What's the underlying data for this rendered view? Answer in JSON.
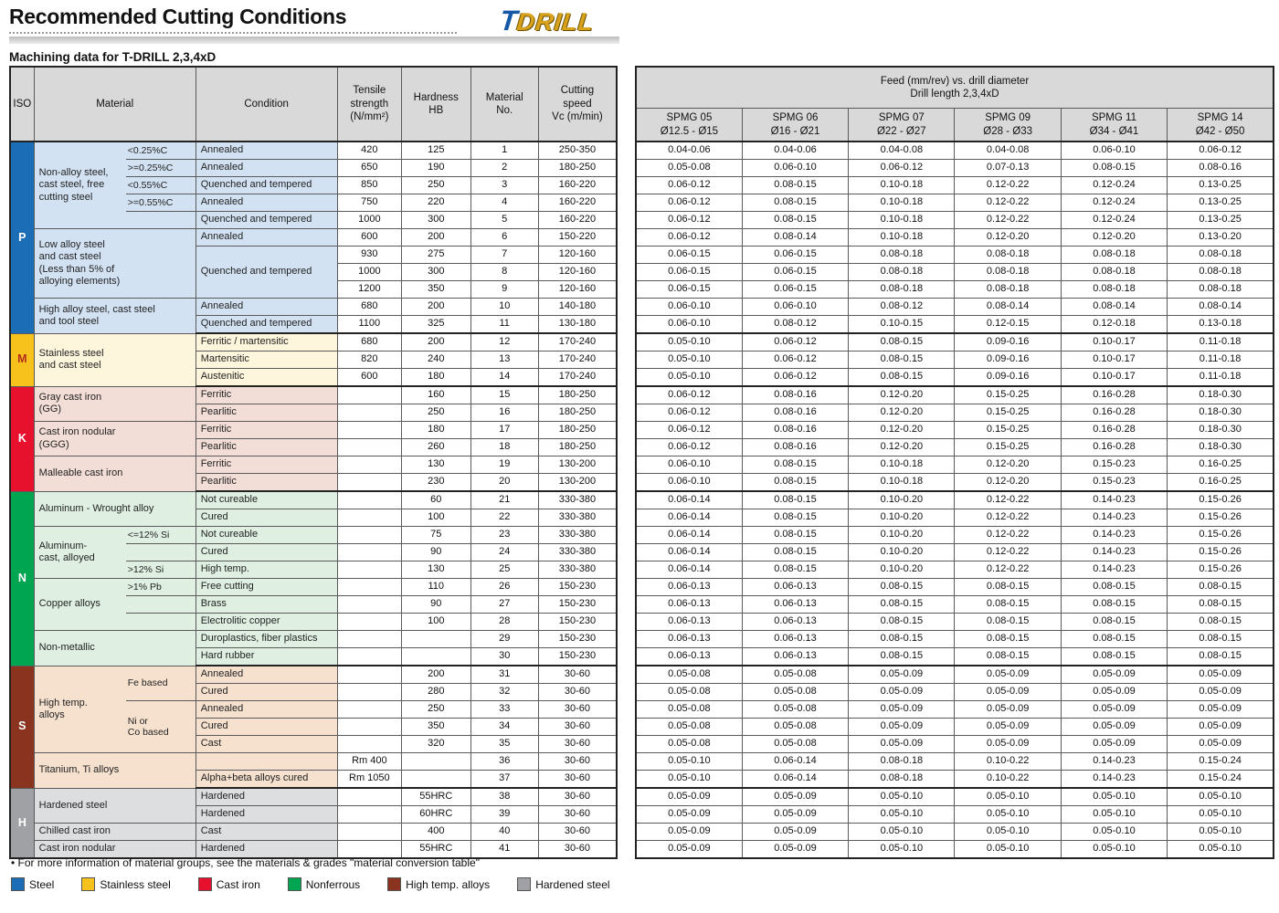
{
  "page": {
    "title": "Recommended Cutting Conditions",
    "subtitle": "Machining data for T-DRILL 2,3,4xD",
    "logo_t": "T",
    "logo_drill": "DRILL"
  },
  "left_table": {
    "header": {
      "iso": "ISO",
      "material": "Material",
      "condition": "Condition",
      "tensile": "Tensile\nstrength\n(N/mm²)",
      "hardness": "Hardness\nHB",
      "material_no": "Material\nNo.",
      "cutting_speed": "Cutting\nspeed\nVc (m/min)"
    },
    "iso_groups": [
      {
        "letter": "P",
        "start": 1,
        "end": 11,
        "color": "#1b6db6",
        "letter_color": "#ffffff",
        "bg": "#d3e2f3",
        "pattern": false
      },
      {
        "letter": "M",
        "start": 12,
        "end": 14,
        "color": "#f6c21b",
        "letter_color": "#b42b1e",
        "bg": "#fdf5dc",
        "pattern": false
      },
      {
        "letter": "K",
        "start": 15,
        "end": 20,
        "color": "#e8112d",
        "letter_color": "#ffffff",
        "bg": "#f3ded7",
        "pattern": false
      },
      {
        "letter": "N",
        "start": 21,
        "end": 30,
        "color": "#00a551",
        "letter_color": "#ffffff",
        "bg": "#dff0e2",
        "pattern": false
      },
      {
        "letter": "S",
        "start": 31,
        "end": 37,
        "color": "#8a341f",
        "letter_color": "#ffffff",
        "bg": "#f6e1cf",
        "pattern": false
      },
      {
        "letter": "H",
        "start": 38,
        "end": 41,
        "color": "#9fa1a4",
        "letter_color": "#ffffff",
        "bg": "#dcdee0",
        "pattern": true
      }
    ],
    "material_groups": [
      {
        "label": "Non-alloy steel,\ncast steel, free\ncutting steel",
        "start": 1,
        "end": 5,
        "sub": true
      },
      {
        "label": "Low alloy steel\nand cast steel\n(Less than 5% of\nalloying elements)",
        "start": 6,
        "end": 9,
        "sub": false
      },
      {
        "label": "High alloy steel, cast steel\nand tool steel",
        "start": 10,
        "end": 11,
        "sub": false
      },
      {
        "label": "Stainless steel\nand cast steel",
        "start": 12,
        "end": 14,
        "sub": false
      },
      {
        "label": "Gray cast iron\n(GG)",
        "start": 15,
        "end": 16,
        "sub": false
      },
      {
        "label": "Cast iron nodular\n(GGG)",
        "start": 17,
        "end": 18,
        "sub": false
      },
      {
        "label": "Malleable cast iron",
        "start": 19,
        "end": 20,
        "sub": false
      },
      {
        "label": "Aluminum - Wrought alloy",
        "start": 21,
        "end": 22,
        "sub": false
      },
      {
        "label": "Aluminum-\ncast, alloyed",
        "start": 23,
        "end": 25,
        "sub": true
      },
      {
        "label": "Copper alloys",
        "start": 26,
        "end": 28,
        "sub": true
      },
      {
        "label": "Non-metallic",
        "start": 29,
        "end": 30,
        "sub": false
      },
      {
        "label": "High temp.\nalloys",
        "start": 31,
        "end": 35,
        "sub": true
      },
      {
        "label": "Titanium, Ti alloys",
        "start": 36,
        "end": 37,
        "sub": false
      },
      {
        "label": "Hardened steel",
        "start": 38,
        "end": 39,
        "sub": false
      },
      {
        "label": "Chilled cast iron",
        "start": 40,
        "end": 40,
        "sub": false
      },
      {
        "label": "Cast iron nodular",
        "start": 41,
        "end": 41,
        "sub": false
      }
    ],
    "sub_labels": [
      {
        "row": 1,
        "span": 1,
        "text": "<0.25%C"
      },
      {
        "row": 2,
        "span": 1,
        "text": ">=0.25%C"
      },
      {
        "row": 3,
        "span": 1,
        "text": "<0.55%C"
      },
      {
        "row": 4,
        "span": 1,
        "text": ">=0.55%C"
      },
      {
        "row": 5,
        "span": 1,
        "text": ""
      },
      {
        "row": 23,
        "span": 1,
        "text": "<=12% Si"
      },
      {
        "row": 24,
        "span": 1,
        "text": ""
      },
      {
        "row": 25,
        "span": 1,
        "text": ">12% Si"
      },
      {
        "row": 26,
        "span": 1,
        "text": ">1% Pb"
      },
      {
        "row": 27,
        "span": 1,
        "text": ""
      },
      {
        "row": 28,
        "span": 1,
        "text": ""
      },
      {
        "row": 31,
        "span": 2,
        "text": "Fe based"
      },
      {
        "row": 33,
        "span": 3,
        "text": "Ni or\nCo based"
      }
    ],
    "conditions": [
      [
        "Annealed",
        1
      ],
      [
        "Annealed",
        1
      ],
      [
        "Quenched and tempered",
        1
      ],
      [
        "Annealed",
        1
      ],
      [
        "Quenched and tempered",
        1
      ],
      [
        "Annealed",
        1
      ],
      [
        "Quenched and tempered",
        3
      ],
      [
        "Annealed",
        1
      ],
      [
        "Quenched and tempered",
        1
      ],
      [
        "Ferritic / martensitic",
        1
      ],
      [
        "Martensitic",
        1
      ],
      [
        "Austenitic",
        1
      ],
      [
        "Ferritic",
        1
      ],
      [
        "Pearlitic",
        1
      ],
      [
        "Ferritic",
        1
      ],
      [
        "Pearlitic",
        1
      ],
      [
        "Ferritic",
        1
      ],
      [
        "Pearlitic",
        1
      ],
      [
        "Not cureable",
        1
      ],
      [
        "Cured",
        1
      ],
      [
        "Not cureable",
        1
      ],
      [
        "Cured",
        1
      ],
      [
        "High temp.",
        1
      ],
      [
        "Free cutting",
        1
      ],
      [
        "Brass",
        1
      ],
      [
        "Electrolitic copper",
        1
      ],
      [
        "Duroplastics, fiber plastics",
        1
      ],
      [
        "Hard rubber",
        1
      ],
      [
        "Annealed",
        1
      ],
      [
        "Cured",
        1
      ],
      [
        "Annealed",
        1
      ],
      [
        "Cured",
        1
      ],
      [
        "Cast",
        1
      ],
      [
        "",
        1
      ],
      [
        "Alpha+beta alloys cured",
        1
      ],
      [
        "Hardened",
        1
      ],
      [
        "Hardened",
        1
      ],
      [
        "Cast",
        1
      ],
      [
        "Hardened",
        1
      ]
    ],
    "rows": [
      [
        "420",
        "125",
        "1",
        "250-350"
      ],
      [
        "650",
        "190",
        "2",
        "180-250"
      ],
      [
        "850",
        "250",
        "3",
        "160-220"
      ],
      [
        "750",
        "220",
        "4",
        "160-220"
      ],
      [
        "1000",
        "300",
        "5",
        "160-220"
      ],
      [
        "600",
        "200",
        "6",
        "150-220"
      ],
      [
        "930",
        "275",
        "7",
        "120-160"
      ],
      [
        "1000",
        "300",
        "8",
        "120-160"
      ],
      [
        "1200",
        "350",
        "9",
        "120-160"
      ],
      [
        "680",
        "200",
        "10",
        "140-180"
      ],
      [
        "1100",
        "325",
        "11",
        "130-180"
      ],
      [
        "680",
        "200",
        "12",
        "170-240"
      ],
      [
        "820",
        "240",
        "13",
        "170-240"
      ],
      [
        "600",
        "180",
        "14",
        "170-240"
      ],
      [
        "",
        "160",
        "15",
        "180-250"
      ],
      [
        "",
        "250",
        "16",
        "180-250"
      ],
      [
        "",
        "180",
        "17",
        "180-250"
      ],
      [
        "",
        "260",
        "18",
        "180-250"
      ],
      [
        "",
        "130",
        "19",
        "130-200"
      ],
      [
        "",
        "230",
        "20",
        "130-200"
      ],
      [
        "",
        "60",
        "21",
        "330-380"
      ],
      [
        "",
        "100",
        "22",
        "330-380"
      ],
      [
        "",
        "75",
        "23",
        "330-380"
      ],
      [
        "",
        "90",
        "24",
        "330-380"
      ],
      [
        "",
        "130",
        "25",
        "330-380"
      ],
      [
        "",
        "110",
        "26",
        "150-230"
      ],
      [
        "",
        "90",
        "27",
        "150-230"
      ],
      [
        "",
        "100",
        "28",
        "150-230"
      ],
      [
        "",
        "",
        "29",
        "150-230"
      ],
      [
        "",
        "",
        "30",
        "150-230"
      ],
      [
        "",
        "200",
        "31",
        "30-60"
      ],
      [
        "",
        "280",
        "32",
        "30-60"
      ],
      [
        "",
        "250",
        "33",
        "30-60"
      ],
      [
        "",
        "350",
        "34",
        "30-60"
      ],
      [
        "",
        "320",
        "35",
        "30-60"
      ],
      [
        "Rm 400",
        "",
        "36",
        "30-60"
      ],
      [
        "Rm 1050",
        "",
        "37",
        "30-60"
      ],
      [
        "",
        "55HRC",
        "38",
        "30-60"
      ],
      [
        "",
        "60HRC",
        "39",
        "30-60"
      ],
      [
        "",
        "400",
        "40",
        "30-60"
      ],
      [
        "",
        "55HRC",
        "41",
        "30-60"
      ]
    ]
  },
  "right_table": {
    "title": "Feed (mm/rev) vs. drill diameter\nDrill length 2,3,4xD",
    "columns": [
      {
        "name": "SPMG 05",
        "range": "Ø12.5 - Ø15"
      },
      {
        "name": "SPMG 06",
        "range": "Ø16 - Ø21"
      },
      {
        "name": "SPMG 07",
        "range": "Ø22 - Ø27"
      },
      {
        "name": "SPMG 09",
        "range": "Ø28 - Ø33"
      },
      {
        "name": "SPMG 11",
        "range": "Ø34 - Ø41"
      },
      {
        "name": "SPMG 14",
        "range": "Ø42 - Ø50"
      }
    ],
    "rows": [
      [
        "0.04-0.06",
        "0.04-0.06",
        "0.04-0.08",
        "0.04-0.08",
        "0.06-0.10",
        "0.06-0.12"
      ],
      [
        "0.05-0.08",
        "0.06-0.10",
        "0.06-0.12",
        "0.07-0.13",
        "0.08-0.15",
        "0.08-0.16"
      ],
      [
        "0.06-0.12",
        "0.08-0.15",
        "0.10-0.18",
        "0.12-0.22",
        "0.12-0.24",
        "0.13-0.25"
      ],
      [
        "0.06-0.12",
        "0.08-0.15",
        "0.10-0.18",
        "0.12-0.22",
        "0.12-0.24",
        "0.13-0.25"
      ],
      [
        "0.06-0.12",
        "0.08-0.15",
        "0.10-0.18",
        "0.12-0.22",
        "0.12-0.24",
        "0.13-0.25"
      ],
      [
        "0.06-0.12",
        "0.08-0.14",
        "0.10-0.18",
        "0.12-0.20",
        "0.12-0.20",
        "0.13-0.20"
      ],
      [
        "0.06-0.15",
        "0.06-0.15",
        "0.08-0.18",
        "0.08-0.18",
        "0.08-0.18",
        "0.08-0.18"
      ],
      [
        "0.06-0.15",
        "0.06-0.15",
        "0.08-0.18",
        "0.08-0.18",
        "0.08-0.18",
        "0.08-0.18"
      ],
      [
        "0.06-0.15",
        "0.06-0.15",
        "0.08-0.18",
        "0.08-0.18",
        "0.08-0.18",
        "0.08-0.18"
      ],
      [
        "0.06-0.10",
        "0.06-0.10",
        "0.08-0.12",
        "0.08-0.14",
        "0.08-0.14",
        "0.08-0.14"
      ],
      [
        "0.06-0.10",
        "0.08-0.12",
        "0.10-0.15",
        "0.12-0.15",
        "0.12-0.18",
        "0.13-0.18"
      ],
      [
        "0.05-0.10",
        "0.06-0.12",
        "0.08-0.15",
        "0.09-0.16",
        "0.10-0.17",
        "0.11-0.18"
      ],
      [
        "0.05-0.10",
        "0.06-0.12",
        "0.08-0.15",
        "0.09-0.16",
        "0.10-0.17",
        "0.11-0.18"
      ],
      [
        "0.05-0.10",
        "0.06-0.12",
        "0.08-0.15",
        "0.09-0.16",
        "0.10-0.17",
        "0.11-0.18"
      ],
      [
        "0.06-0.12",
        "0.08-0.16",
        "0.12-0.20",
        "0.15-0.25",
        "0.16-0.28",
        "0.18-0.30"
      ],
      [
        "0.06-0.12",
        "0.08-0.16",
        "0.12-0.20",
        "0.15-0.25",
        "0.16-0.28",
        "0.18-0.30"
      ],
      [
        "0.06-0.12",
        "0.08-0.16",
        "0.12-0.20",
        "0.15-0.25",
        "0.16-0.28",
        "0.18-0.30"
      ],
      [
        "0.06-0.12",
        "0.08-0.16",
        "0.12-0.20",
        "0.15-0.25",
        "0.16-0.28",
        "0.18-0.30"
      ],
      [
        "0.06-0.10",
        "0.08-0.15",
        "0.10-0.18",
        "0.12-0.20",
        "0.15-0.23",
        "0.16-0.25"
      ],
      [
        "0.06-0.10",
        "0.08-0.15",
        "0.10-0.18",
        "0.12-0.20",
        "0.15-0.23",
        "0.16-0.25"
      ],
      [
        "0.06-0.14",
        "0.08-0.15",
        "0.10-0.20",
        "0.12-0.22",
        "0.14-0.23",
        "0.15-0.26"
      ],
      [
        "0.06-0.14",
        "0.08-0.15",
        "0.10-0.20",
        "0.12-0.22",
        "0.14-0.23",
        "0.15-0.26"
      ],
      [
        "0.06-0.14",
        "0.08-0.15",
        "0.10-0.20",
        "0.12-0.22",
        "0.14-0.23",
        "0.15-0.26"
      ],
      [
        "0.06-0.14",
        "0.08-0.15",
        "0.10-0.20",
        "0.12-0.22",
        "0.14-0.23",
        "0.15-0.26"
      ],
      [
        "0.06-0.14",
        "0.08-0.15",
        "0.10-0.20",
        "0.12-0.22",
        "0.14-0.23",
        "0.15-0.26"
      ],
      [
        "0.06-0.13",
        "0.06-0.13",
        "0.08-0.15",
        "0.08-0.15",
        "0.08-0.15",
        "0.08-0.15"
      ],
      [
        "0.06-0.13",
        "0.06-0.13",
        "0.08-0.15",
        "0.08-0.15",
        "0.08-0.15",
        "0.08-0.15"
      ],
      [
        "0.06-0.13",
        "0.06-0.13",
        "0.08-0.15",
        "0.08-0.15",
        "0.08-0.15",
        "0.08-0.15"
      ],
      [
        "0.06-0.13",
        "0.06-0.13",
        "0.08-0.15",
        "0.08-0.15",
        "0.08-0.15",
        "0.08-0.15"
      ],
      [
        "0.06-0.13",
        "0.06-0.13",
        "0.08-0.15",
        "0.08-0.15",
        "0.08-0.15",
        "0.08-0.15"
      ],
      [
        "0.05-0.08",
        "0.05-0.08",
        "0.05-0.09",
        "0.05-0.09",
        "0.05-0.09",
        "0.05-0.09"
      ],
      [
        "0.05-0.08",
        "0.05-0.08",
        "0.05-0.09",
        "0.05-0.09",
        "0.05-0.09",
        "0.05-0.09"
      ],
      [
        "0.05-0.08",
        "0.05-0.08",
        "0.05-0.09",
        "0.05-0.09",
        "0.05-0.09",
        "0.05-0.09"
      ],
      [
        "0.05-0.08",
        "0.05-0.08",
        "0.05-0.09",
        "0.05-0.09",
        "0.05-0.09",
        "0.05-0.09"
      ],
      [
        "0.05-0.08",
        "0.05-0.08",
        "0.05-0.09",
        "0.05-0.09",
        "0.05-0.09",
        "0.05-0.09"
      ],
      [
        "0.05-0.10",
        "0.06-0.14",
        "0.08-0.18",
        "0.10-0.22",
        "0.14-0.23",
        "0.15-0.24"
      ],
      [
        "0.05-0.10",
        "0.06-0.14",
        "0.08-0.18",
        "0.10-0.22",
        "0.14-0.23",
        "0.15-0.24"
      ],
      [
        "0.05-0.09",
        "0.05-0.09",
        "0.05-0.10",
        "0.05-0.10",
        "0.05-0.10",
        "0.05-0.10"
      ],
      [
        "0.05-0.09",
        "0.05-0.09",
        "0.05-0.10",
        "0.05-0.10",
        "0.05-0.10",
        "0.05-0.10"
      ],
      [
        "0.05-0.09",
        "0.05-0.09",
        "0.05-0.10",
        "0.05-0.10",
        "0.05-0.10",
        "0.05-0.10"
      ],
      [
        "0.05-0.09",
        "0.05-0.09",
        "0.05-0.10",
        "0.05-0.10",
        "0.05-0.10",
        "0.05-0.10"
      ]
    ]
  },
  "footer": {
    "note": "• For more information of material groups, see the materials & grades \"material conversion table\"",
    "legend": [
      {
        "label": "Steel",
        "color": "#1b6db6",
        "pattern": false
      },
      {
        "label": "Stainless steel",
        "color": "#f6c21b",
        "pattern": false
      },
      {
        "label": "Cast iron",
        "color": "#e8112d",
        "pattern": false
      },
      {
        "label": "Nonferrous",
        "color": "#00a551",
        "pattern": false
      },
      {
        "label": "High temp. alloys",
        "color": "#8a341f",
        "pattern": false
      },
      {
        "label": "Hardened steel",
        "color": "#9fa1a4",
        "pattern": true
      }
    ]
  }
}
